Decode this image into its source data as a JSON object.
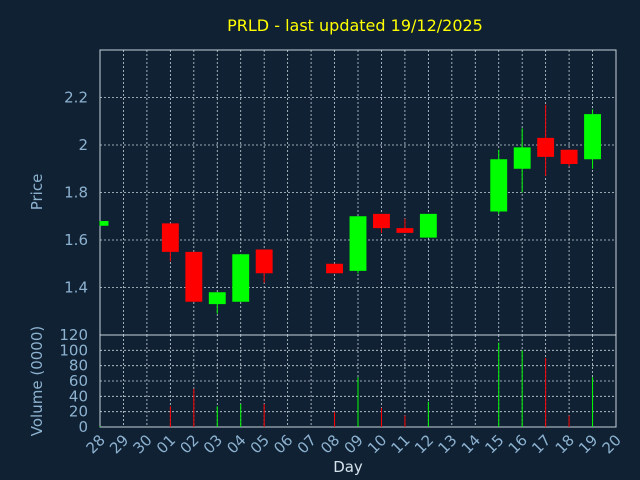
{
  "title": "PRLD - last updated 19/12/2025",
  "colors": {
    "background": "#0f2133",
    "up": "#00ff00",
    "down": "#ff0000",
    "title": "#ffff00",
    "axis_text": "#8db2d0"
  },
  "chart_data": [
    {
      "type": "candlestick",
      "ylabel": "Price",
      "ylim": [
        1.2,
        2.4
      ],
      "yticks": [
        "1.4",
        "1.6",
        "1.8",
        "2",
        "2.2"
      ],
      "grid": true,
      "candles": [
        {
          "x": "28",
          "open": 1.66,
          "high": 1.68,
          "low": 1.66,
          "close": 1.68
        },
        {
          "x": "01",
          "open": 1.67,
          "high": 1.67,
          "low": 1.51,
          "close": 1.55
        },
        {
          "x": "02",
          "open": 1.55,
          "high": 1.55,
          "low": 1.34,
          "close": 1.34
        },
        {
          "x": "03",
          "open": 1.33,
          "high": 1.38,
          "low": 1.29,
          "close": 1.38
        },
        {
          "x": "04",
          "open": 1.34,
          "high": 1.54,
          "low": 1.34,
          "close": 1.54
        },
        {
          "x": "05",
          "open": 1.56,
          "high": 1.56,
          "low": 1.42,
          "close": 1.46
        },
        {
          "x": "08",
          "open": 1.5,
          "high": 1.5,
          "low": 1.46,
          "close": 1.46
        },
        {
          "x": "09",
          "open": 1.47,
          "high": 1.7,
          "low": 1.46,
          "close": 1.7
        },
        {
          "x": "10",
          "open": 1.71,
          "high": 1.71,
          "low": 1.63,
          "close": 1.65
        },
        {
          "x": "11",
          "open": 1.65,
          "high": 1.69,
          "low": 1.63,
          "close": 1.63
        },
        {
          "x": "12",
          "open": 1.61,
          "high": 1.71,
          "low": 1.61,
          "close": 1.71
        },
        {
          "x": "15",
          "open": 1.72,
          "high": 1.98,
          "low": 1.71,
          "close": 1.94
        },
        {
          "x": "16",
          "open": 1.9,
          "high": 2.07,
          "low": 1.8,
          "close": 1.99
        },
        {
          "x": "17",
          "open": 2.03,
          "high": 2.17,
          "low": 1.87,
          "close": 1.95
        },
        {
          "x": "18",
          "open": 1.98,
          "high": 1.98,
          "low": 1.91,
          "close": 1.92
        },
        {
          "x": "19",
          "open": 1.94,
          "high": 2.15,
          "low": 1.9,
          "close": 2.13
        }
      ]
    },
    {
      "type": "bar",
      "ylabel": "Volume (0000)",
      "xlabel": "Day",
      "ylim": [
        0,
        120
      ],
      "yticks": [
        "0",
        "20",
        "40",
        "60",
        "80",
        "100",
        "120"
      ],
      "categories": [
        "28",
        "29",
        "30",
        "01",
        "02",
        "03",
        "04",
        "05",
        "06",
        "07",
        "08",
        "09",
        "10",
        "11",
        "12",
        "13",
        "14",
        "15",
        "16",
        "17",
        "18",
        "19",
        "20"
      ],
      "volumes": [
        {
          "x": "28",
          "value": 1,
          "direction": "up"
        },
        {
          "x": "01",
          "value": 27,
          "direction": "down"
        },
        {
          "x": "02",
          "value": 50,
          "direction": "down"
        },
        {
          "x": "03",
          "value": 27,
          "direction": "up"
        },
        {
          "x": "04",
          "value": 30,
          "direction": "up"
        },
        {
          "x": "05",
          "value": 30,
          "direction": "down"
        },
        {
          "x": "08",
          "value": 20,
          "direction": "down"
        },
        {
          "x": "09",
          "value": 65,
          "direction": "up"
        },
        {
          "x": "10",
          "value": 25,
          "direction": "down"
        },
        {
          "x": "11",
          "value": 15,
          "direction": "down"
        },
        {
          "x": "12",
          "value": 33,
          "direction": "up"
        },
        {
          "x": "15",
          "value": 110,
          "direction": "up"
        },
        {
          "x": "16",
          "value": 100,
          "direction": "up"
        },
        {
          "x": "17",
          "value": 90,
          "direction": "down"
        },
        {
          "x": "18",
          "value": 15,
          "direction": "down"
        },
        {
          "x": "19",
          "value": 65,
          "direction": "up"
        }
      ]
    }
  ]
}
